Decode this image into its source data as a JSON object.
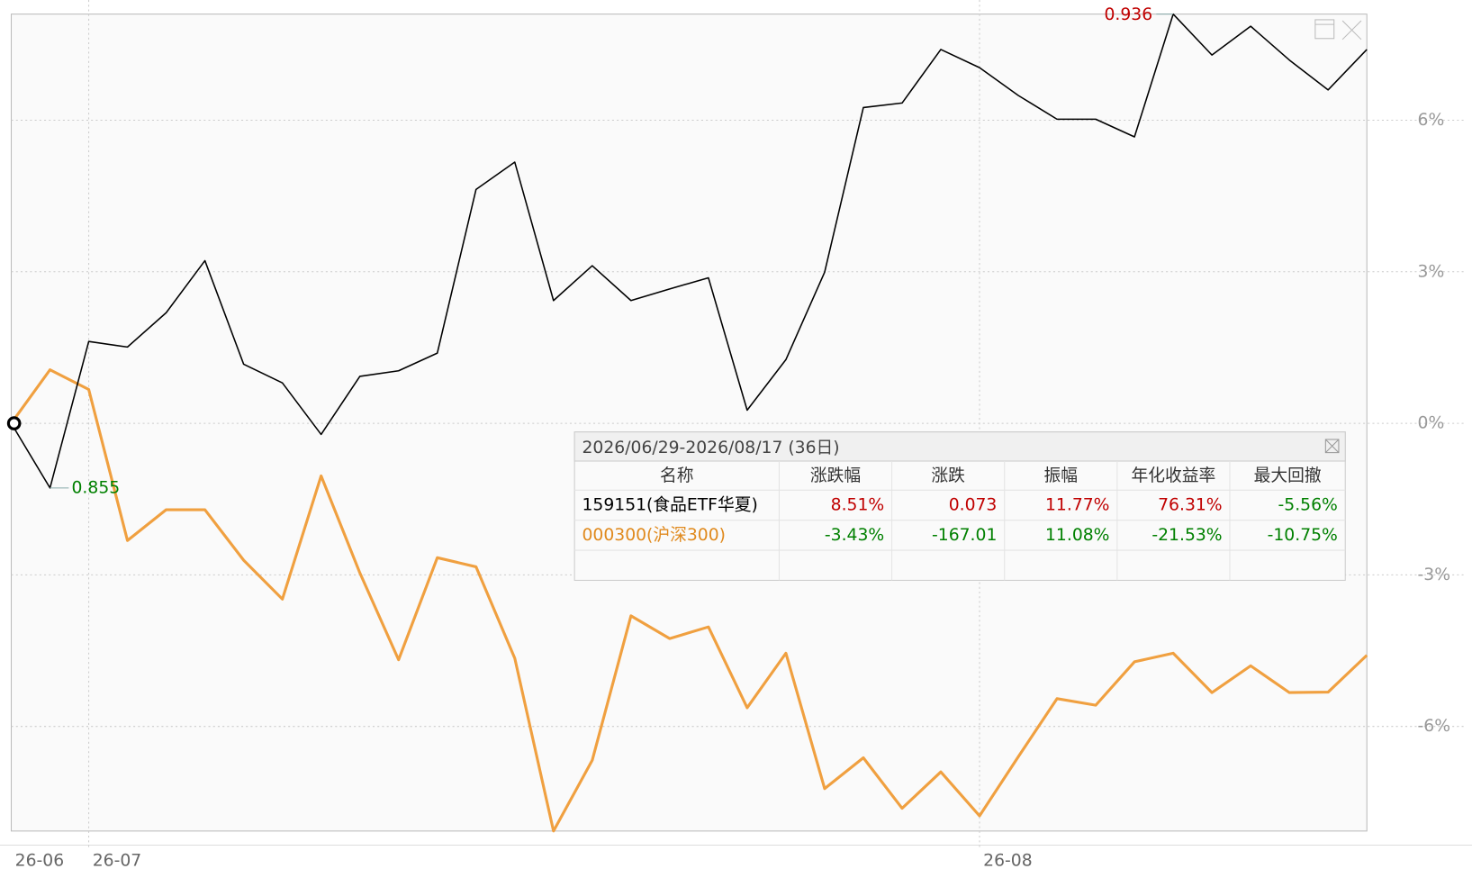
{
  "chart_data": {
    "type": "line",
    "categories": [
      "26-06",
      null,
      "26-07",
      null,
      null,
      null,
      null,
      null,
      null,
      null,
      null,
      null,
      null,
      null,
      null,
      null,
      null,
      null,
      null,
      null,
      null,
      null,
      null,
      null,
      null,
      "26-08",
      null,
      null,
      null,
      null,
      null,
      null,
      null,
      null,
      null,
      null
    ],
    "series": [
      {
        "name": "159151(食品ETF华夏)",
        "color": "#000000",
        "values": [
          0,
          -1.28,
          1.62,
          1.51,
          2.19,
          3.22,
          1.17,
          0.8,
          -0.22,
          0.93,
          1.04,
          1.39,
          4.63,
          5.17,
          2.43,
          3.12,
          2.43,
          2.66,
          2.88,
          0.26,
          1.26,
          2.99,
          6.25,
          6.34,
          7.4,
          7.04,
          6.49,
          6.02,
          6.02,
          5.67,
          8.1,
          7.29,
          7.86,
          7.19,
          6.6,
          7.4
        ]
      },
      {
        "name": "000300(沪深300)",
        "color": "#f0a040",
        "values": [
          0,
          1.06,
          0.67,
          -2.32,
          -1.71,
          -1.71,
          -2.71,
          -3.48,
          -1.04,
          -2.96,
          -4.68,
          -2.66,
          -2.84,
          -4.65,
          -8.07,
          -6.67,
          -3.81,
          -4.26,
          -4.03,
          -5.63,
          -4.55,
          -7.23,
          -6.62,
          -7.62,
          -6.9,
          -7.77,
          -6.6,
          -5.45,
          -5.58,
          -4.72,
          -4.55,
          -5.33,
          -4.8,
          -5.33,
          -5.32,
          -4.59
        ]
      }
    ],
    "ylim": [
      -8.07,
      8.1
    ],
    "yticks": [
      {
        "value": 6,
        "label": "6%"
      },
      {
        "value": 3,
        "label": "3%"
      },
      {
        "value": 0,
        "label": "0%"
      },
      {
        "value": -3,
        "label": "-3%"
      },
      {
        "value": -6,
        "label": "-6%"
      }
    ],
    "grid": true,
    "annotations": [
      {
        "text": "0.936",
        "color": "#c00000"
      },
      {
        "text": "0.855",
        "color": "#008000"
      }
    ]
  },
  "table": {
    "title": "2026/06/29-2026/08/17 (36日)",
    "headers": [
      "名称",
      "涨跌幅",
      "涨跌",
      "振幅",
      "年化收益率",
      "最大回撤"
    ],
    "rows": [
      {
        "cells": [
          "159151(食品ETF华夏)",
          "8.51%",
          "0.073",
          "11.77%",
          "76.31%",
          "-5.56%"
        ],
        "colors": [
          "#000000",
          "#c00000",
          "#c00000",
          "#c00000",
          "#c00000",
          "#008000"
        ]
      },
      {
        "cells": [
          "000300(沪深300)",
          "-3.43%",
          "-167.01",
          "11.08%",
          "-21.53%",
          "-10.75%"
        ],
        "colors": [
          "#e08a1e",
          "#008000",
          "#008000",
          "#008000",
          "#008000",
          "#008000"
        ]
      }
    ]
  }
}
